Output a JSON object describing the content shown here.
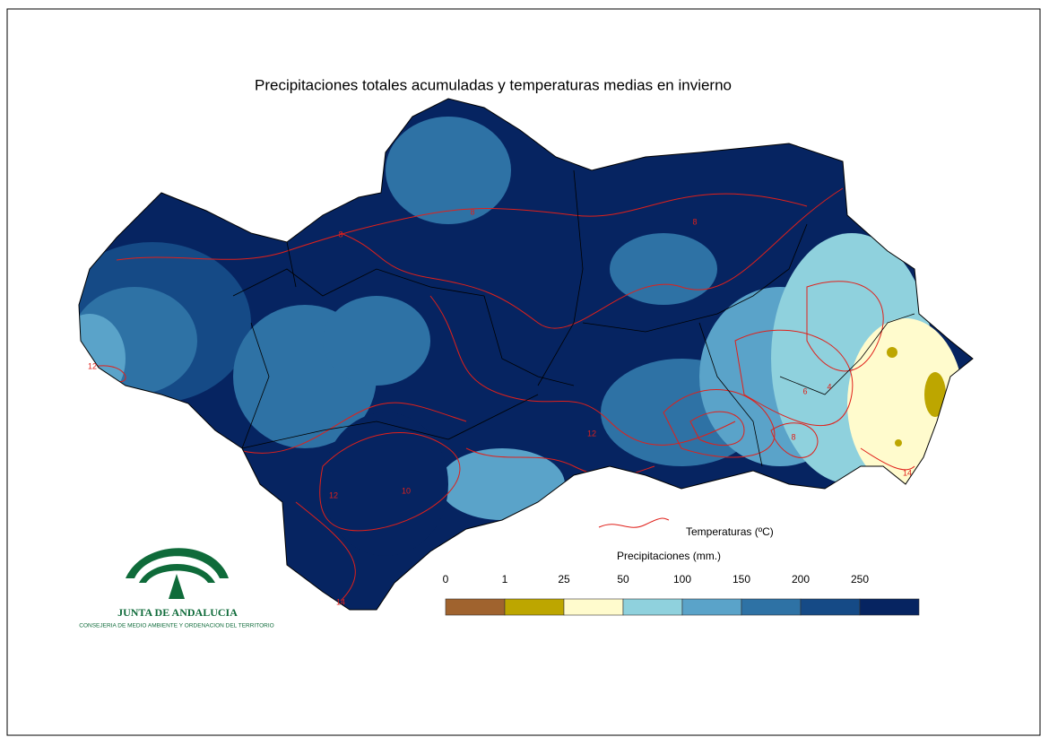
{
  "title": "Precipitaciones totales acumuladas y temperaturas medias en invierno",
  "legend": {
    "temperature_label": "Temperaturas (ºC)",
    "precipitation_label": "Precipitaciones (mm.)",
    "breaks": [
      0,
      1,
      25,
      50,
      100,
      150,
      200,
      250
    ],
    "colors": [
      "#a0632e",
      "#bda600",
      "#fffbcd",
      "#8fd1dd",
      "#5aa3c9",
      "#2e72a5",
      "#154a86",
      "#062461"
    ],
    "line_color": "#e0201a"
  },
  "contour_labels": [
    8,
    8,
    8,
    12,
    12,
    10,
    6,
    4,
    8,
    14,
    12,
    14
  ],
  "logo": {
    "name": "JUNTA DE ANDALUCIA",
    "department": "CONSEJERIA DE MEDIO AMBIENTE Y ORDENACION DEL TERRITORIO"
  }
}
